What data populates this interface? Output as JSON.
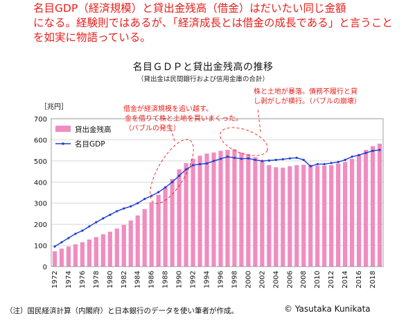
{
  "headline": {
    "lines": [
      "名目GDP（経済規模）と貸出金残高（借金）はだいたい同じ金額",
      "になる。経験則ではあるが、「経済成長とは借金の成長である」と言うこと",
      "を如実に物語っている。"
    ]
  },
  "chart_data": {
    "type": "bar",
    "title": "名目ＧＤＰと貸出金残高の推移",
    "subtitle": "（貸出金は民間銀行および信用金庫の合計）",
    "unit_label": "［兆円］",
    "ylim": [
      0,
      700
    ],
    "yticks": [
      0,
      100,
      200,
      300,
      400,
      500,
      600,
      700
    ],
    "grid": true,
    "legend_position": "top-left",
    "years": [
      1972,
      1973,
      1974,
      1975,
      1976,
      1977,
      1978,
      1979,
      1980,
      1981,
      1982,
      1983,
      1984,
      1985,
      1986,
      1987,
      1988,
      1989,
      1990,
      1991,
      1992,
      1993,
      1994,
      1995,
      1996,
      1997,
      1998,
      1999,
      2000,
      2001,
      2002,
      2003,
      2004,
      2005,
      2006,
      2007,
      2008,
      2009,
      2010,
      2011,
      2012,
      2013,
      2014,
      2015,
      2016,
      2017,
      2018,
      2019
    ],
    "series": [
      {
        "name": "貸出金残高",
        "kind": "bar",
        "color": "#f08cc0",
        "values": [
          72,
          85,
          95,
          105,
          115,
          128,
          140,
          153,
          165,
          180,
          197,
          218,
          242,
          272,
          305,
          340,
          375,
          415,
          460,
          490,
          510,
          525,
          535,
          540,
          548,
          552,
          555,
          540,
          532,
          518,
          500,
          480,
          470,
          468,
          475,
          480,
          482,
          482,
          478,
          478,
          480,
          488,
          495,
          510,
          530,
          552,
          570,
          582
        ]
      },
      {
        "name": "名目GDP",
        "kind": "line",
        "color": "#1b3fd0",
        "values": [
          95,
          115,
          135,
          155,
          170,
          190,
          210,
          228,
          245,
          262,
          275,
          285,
          300,
          320,
          335,
          352,
          375,
          400,
          430,
          460,
          480,
          485,
          488,
          500,
          510,
          520,
          515,
          510,
          512,
          505,
          500,
          502,
          505,
          508,
          512,
          515,
          505,
          475,
          485,
          485,
          490,
          495,
          505,
          520,
          528,
          538,
          548,
          552
        ]
      }
    ],
    "annotations": [
      {
        "text": "借金が経済規模を追い越す。\n金を借りて株と土地を買いまくった。\n（バブルの発生）",
        "color": "#e8201c"
      },
      {
        "text": "株と土地が暴落。債務不履行と貸\nし剥がしが横行。（バブルの崩壊）",
        "color": "#e8201c"
      }
    ]
  },
  "footnote": "（注）国民経済計算（内閣府）と日本銀行のデータを使い筆者が作成。",
  "credit": "© Yasutaka Kunikata"
}
